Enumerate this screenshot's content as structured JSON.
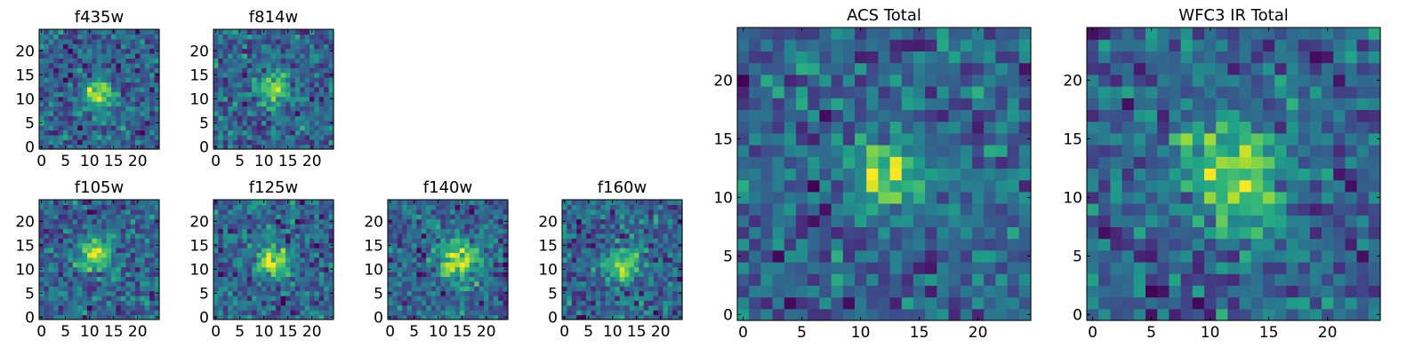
{
  "chart_data": [
    {
      "id": "f435w",
      "type": "heatmap",
      "title": "f435w",
      "size": 25,
      "xticks": [
        0,
        5,
        10,
        15,
        20
      ],
      "yticks": [
        0,
        5,
        10,
        15,
        20
      ],
      "colormap": "viridis",
      "source_center": [
        12,
        11
      ],
      "source_sigma": 2.2
    },
    {
      "id": "f814w",
      "type": "heatmap",
      "title": "f814w",
      "size": 25,
      "xticks": [
        0,
        5,
        10,
        15,
        20
      ],
      "yticks": [
        0,
        5,
        10,
        15,
        20
      ],
      "colormap": "viridis",
      "source_center": [
        12,
        12
      ],
      "source_sigma": 2.2
    },
    {
      "id": "f105w",
      "type": "heatmap",
      "title": "f105w",
      "size": 25,
      "xticks": [
        0,
        5,
        10,
        15,
        20
      ],
      "yticks": [
        0,
        5,
        10,
        15,
        20
      ],
      "colormap": "viridis",
      "source_center": [
        11,
        13
      ],
      "source_sigma": 2.5
    },
    {
      "id": "f125w",
      "type": "heatmap",
      "title": "f125w",
      "size": 25,
      "xticks": [
        0,
        5,
        10,
        15,
        20
      ],
      "yticks": [
        0,
        5,
        10,
        15,
        20
      ],
      "colormap": "viridis",
      "source_center": [
        12,
        12
      ],
      "source_sigma": 2.5
    },
    {
      "id": "f140w",
      "type": "heatmap",
      "title": "f140w",
      "size": 25,
      "xticks": [
        0,
        5,
        10,
        15,
        20
      ],
      "yticks": [
        0,
        5,
        10,
        15,
        20
      ],
      "colormap": "viridis",
      "source_center": [
        14,
        12
      ],
      "source_sigma": 3.0
    },
    {
      "id": "f160w",
      "type": "heatmap",
      "title": "f160w",
      "size": 25,
      "xticks": [
        0,
        5,
        10,
        15,
        20
      ],
      "yticks": [
        0,
        5,
        10,
        15,
        20
      ],
      "colormap": "viridis",
      "source_center": [
        12,
        11
      ],
      "source_sigma": 2.5
    },
    {
      "id": "acs_total",
      "type": "heatmap",
      "title": "ACS Total",
      "size": 25,
      "xticks": [
        0,
        5,
        10,
        15,
        20
      ],
      "yticks": [
        0,
        5,
        10,
        15,
        20
      ],
      "colormap": "viridis",
      "source_center": [
        12,
        12
      ],
      "source_sigma": 2.0
    },
    {
      "id": "wfc3_ir_total",
      "type": "heatmap",
      "title": "WFC3 IR Total",
      "size": 25,
      "xticks": [
        0,
        5,
        10,
        15,
        20
      ],
      "yticks": [
        0,
        5,
        10,
        15,
        20
      ],
      "colormap": "viridis",
      "source_center": [
        12,
        12
      ],
      "source_sigma": 3.0
    }
  ]
}
